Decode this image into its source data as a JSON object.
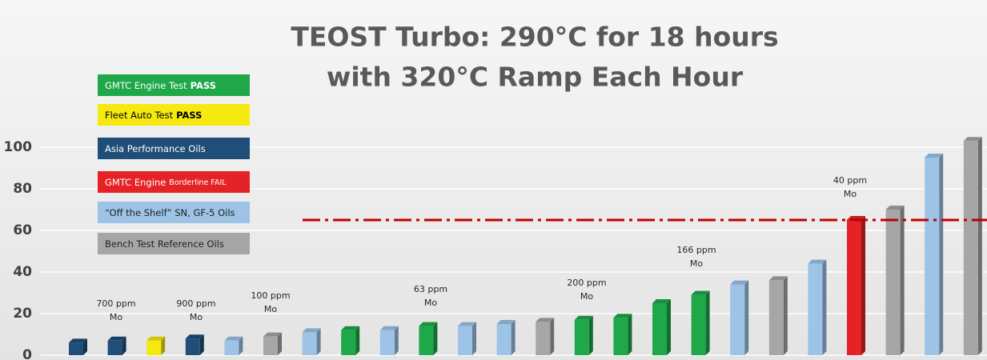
{
  "chart_data": {
    "type": "bar",
    "title": [
      "TEOST Turbo: 290°C for 18 hours",
      "with 320°C Ramp Each Hour"
    ],
    "values": [
      6,
      7,
      7,
      8,
      7,
      9,
      11,
      12,
      12,
      14,
      14,
      15,
      16,
      17,
      18,
      25,
      29,
      34,
      36,
      44,
      65,
      70,
      95,
      103
    ],
    "colors": [
      "#1f4e79",
      "#1f4e79",
      "#f5e90f",
      "#1f4e79",
      "#9dc3e6",
      "#a6a6a6",
      "#9dc3e6",
      "#1ea84a",
      "#9dc3e6",
      "#1ea84a",
      "#9dc3e6",
      "#9dc3e6",
      "#a6a6a6",
      "#1ea84a",
      "#1ea84a",
      "#1ea84a",
      "#1ea84a",
      "#9dc3e6",
      "#a6a6a6",
      "#9dc3e6",
      "#e52326",
      "#a6a6a6",
      "#9dc3e6",
      "#a6a6a6"
    ],
    "ylim": [
      0,
      110
    ],
    "yticks": [
      0,
      20,
      40,
      60,
      80,
      100
    ],
    "grid": true,
    "threshold": {
      "value": 65,
      "color": "#c00000"
    },
    "annotations": [
      [
        "700 ppm",
        "Mo"
      ],
      [
        "900 ppm",
        "Mo"
      ],
      [
        "100 ppm",
        "Mo"
      ],
      [
        "63 ppm",
        "Mo"
      ],
      [
        "200 ppm",
        "Mo"
      ],
      [
        "166 ppm",
        "Mo"
      ],
      [
        "40 ppm",
        "Mo"
      ]
    ],
    "legend": [
      {
        "color": "#1ea84a",
        "text": "GMTC Engine Test",
        "emph": "PASS",
        "emph_style": "bold",
        "text_color": "#ffffff"
      },
      {
        "color": "#f5e90f",
        "text": "Fleet Auto Test",
        "emph": "PASS",
        "emph_style": "bold",
        "text_color": "#000000"
      },
      {
        "color": "#1f4e79",
        "text": "Asia Performance Oils",
        "text_color": "#ffffff"
      },
      {
        "color": "#e52326",
        "text": "GMTC Engine",
        "emph": "Borderline FAIL",
        "emph_style": "small",
        "text_color": "#ffffff"
      },
      {
        "color": "#9dc3e6",
        "text": "“Off the Shelf” SN, GF-5 Oils",
        "text_color": "#1f1f1f"
      },
      {
        "color": "#a6a6a6",
        "text": "Bench Test Reference Oils",
        "text_color": "#1f1f1f"
      }
    ]
  }
}
